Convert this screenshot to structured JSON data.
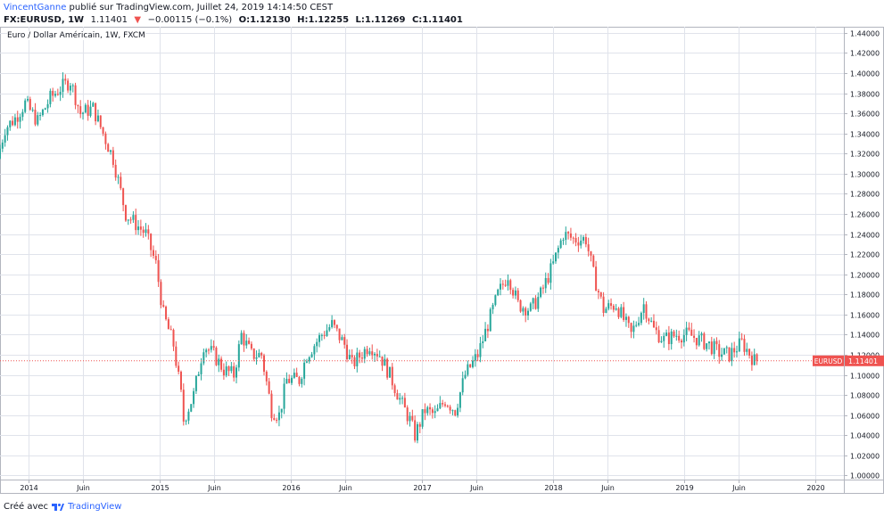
{
  "header": {
    "author": "VincentGanne",
    "published_text": "publié sur TradingView.com, Juillet 24, 2019 14:14:50 CEST",
    "symbol": "FX:EURUSD, 1W",
    "last": "1.11401",
    "change": "−0.00115 (−0.1%)",
    "open": "O:1.12130",
    "high": "H:1.12255",
    "low": "L:1.11269",
    "close": "C:1.11401"
  },
  "footer": {
    "created_with": "Créé avec",
    "brand": "TradingView"
  },
  "chart_data": {
    "type": "candlestick",
    "title": "Euro / Dollar Américain, 1W, FXCM",
    "symbol_label": "EURUSD",
    "last_price": 1.11401,
    "colors": {
      "up": "#26a69a",
      "down": "#ef5350",
      "grid": "#e0e3eb",
      "price_line": "#ef5350"
    },
    "ylim": [
      0.996,
      1.446
    ],
    "y_ticks": [
      "1.00000",
      "1.02000",
      "1.04000",
      "1.06000",
      "1.08000",
      "1.10000",
      "1.12000",
      "1.14000",
      "1.16000",
      "1.18000",
      "1.20000",
      "1.22000",
      "1.24000",
      "1.26000",
      "1.28000",
      "1.30000",
      "1.32000",
      "1.34000",
      "1.36000",
      "1.38000",
      "1.40000",
      "1.42000",
      "1.44000"
    ],
    "x_ticks": [
      {
        "label": "2014",
        "date": "2014-01-01"
      },
      {
        "label": "Juin",
        "date": "2014-06-01"
      },
      {
        "label": "2015",
        "date": "2015-01-01"
      },
      {
        "label": "Juin",
        "date": "2015-06-01"
      },
      {
        "label": "2016",
        "date": "2016-01-01"
      },
      {
        "label": "Juin",
        "date": "2016-06-01"
      },
      {
        "label": "2017",
        "date": "2017-01-01"
      },
      {
        "label": "Juin",
        "date": "2017-06-01"
      },
      {
        "label": "2018",
        "date": "2018-01-01"
      },
      {
        "label": "Juin",
        "date": "2018-06-01"
      },
      {
        "label": "2019",
        "date": "2019-01-01"
      },
      {
        "label": "Juin",
        "date": "2019-06-01"
      },
      {
        "label": "2020",
        "date": "2020-01-01"
      }
    ],
    "xlim": [
      "2013-10-14",
      "2020-03-20"
    ],
    "x_start": "2013-10-14",
    "x_end": "2019-07-22",
    "path": [
      [
        "2013-10-14",
        1.315
      ],
      [
        "2013-11-04",
        1.345
      ],
      [
        "2013-12-02",
        1.355
      ],
      [
        "2013-12-30",
        1.37
      ],
      [
        "2014-02-03",
        1.352
      ],
      [
        "2014-03-10",
        1.375
      ],
      [
        "2014-04-07",
        1.385
      ],
      [
        "2014-05-05",
        1.392
      ],
      [
        "2014-06-02",
        1.36
      ],
      [
        "2014-07-07",
        1.365
      ],
      [
        "2014-08-04",
        1.34
      ],
      [
        "2014-09-01",
        1.315
      ],
      [
        "2014-10-06",
        1.26
      ],
      [
        "2014-11-03",
        1.25
      ],
      [
        "2014-12-01",
        1.24
      ],
      [
        "2014-12-29",
        1.21
      ],
      [
        "2015-01-19",
        1.16
      ],
      [
        "2015-02-16",
        1.13
      ],
      [
        "2015-03-09",
        1.08
      ],
      [
        "2015-03-16",
        1.055
      ],
      [
        "2015-04-13",
        1.08
      ],
      [
        "2015-05-11",
        1.13
      ],
      [
        "2015-06-08",
        1.12
      ],
      [
        "2015-07-06",
        1.105
      ],
      [
        "2015-08-03",
        1.1
      ],
      [
        "2015-08-24",
        1.14
      ],
      [
        "2015-09-21",
        1.12
      ],
      [
        "2015-10-19",
        1.12
      ],
      [
        "2015-11-16",
        1.065
      ],
      [
        "2015-12-07",
        1.06
      ],
      [
        "2015-12-28",
        1.095
      ],
      [
        "2016-02-01",
        1.095
      ],
      [
        "2016-02-22",
        1.12
      ],
      [
        "2016-04-04",
        1.14
      ],
      [
        "2016-05-02",
        1.15
      ],
      [
        "2016-06-06",
        1.13
      ],
      [
        "2016-06-27",
        1.11
      ],
      [
        "2016-08-15",
        1.13
      ],
      [
        "2016-09-12",
        1.12
      ],
      [
        "2016-10-10",
        1.1
      ],
      [
        "2016-11-14",
        1.07
      ],
      [
        "2016-12-05",
        1.055
      ],
      [
        "2016-12-19",
        1.04
      ],
      [
        "2017-01-16",
        1.065
      ],
      [
        "2017-02-13",
        1.06
      ],
      [
        "2017-03-13",
        1.075
      ],
      [
        "2017-04-10",
        1.065
      ],
      [
        "2017-05-08",
        1.1
      ],
      [
        "2017-06-12",
        1.12
      ],
      [
        "2017-07-10",
        1.15
      ],
      [
        "2017-08-07",
        1.18
      ],
      [
        "2017-09-04",
        1.2
      ],
      [
        "2017-10-02",
        1.17
      ],
      [
        "2017-11-06",
        1.165
      ],
      [
        "2017-12-04",
        1.18
      ],
      [
        "2018-01-08",
        1.21
      ],
      [
        "2018-02-05",
        1.24
      ],
      [
        "2018-03-05",
        1.235
      ],
      [
        "2018-04-09",
        1.235
      ],
      [
        "2018-04-30",
        1.2
      ],
      [
        "2018-05-28",
        1.165
      ],
      [
        "2018-07-02",
        1.17
      ],
      [
        "2018-08-13",
        1.14
      ],
      [
        "2018-09-17",
        1.17
      ],
      [
        "2018-10-15",
        1.145
      ],
      [
        "2018-11-12",
        1.135
      ],
      [
        "2018-12-17",
        1.14
      ],
      [
        "2019-01-21",
        1.14
      ],
      [
        "2019-02-18",
        1.135
      ],
      [
        "2019-03-18",
        1.13
      ],
      [
        "2019-04-15",
        1.122
      ],
      [
        "2019-05-13",
        1.12
      ],
      [
        "2019-06-17",
        1.132
      ],
      [
        "2019-07-01",
        1.125
      ],
      [
        "2019-07-22",
        1.114
      ]
    ]
  }
}
